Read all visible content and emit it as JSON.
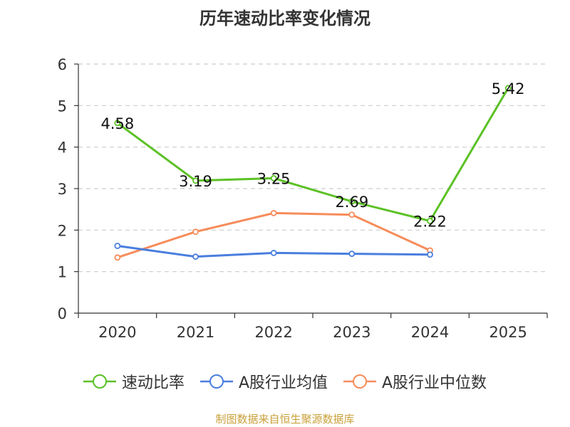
{
  "chart_data": {
    "type": "line",
    "title": "历年速动比率变化情况",
    "categories": [
      "2020",
      "2021",
      "2022",
      "2023",
      "2024",
      "2025"
    ],
    "ylim": [
      0,
      6
    ],
    "yticks": [
      0,
      1,
      2,
      3,
      4,
      5,
      6
    ],
    "grid": true,
    "legend_position": "bottom",
    "series": [
      {
        "name": "速动比率",
        "color": "#5cc126",
        "values": [
          4.58,
          3.19,
          3.25,
          2.69,
          2.22,
          5.42
        ],
        "labels": [
          "4.58",
          "3.19",
          "3.25",
          "2.69",
          "2.22",
          "5.42"
        ]
      },
      {
        "name": "A股行业均值",
        "color": "#4a7ede",
        "values": [
          1.62,
          1.36,
          1.45,
          1.43,
          1.41,
          null
        ]
      },
      {
        "name": "A股行业中位数",
        "color": "#f68c5a",
        "values": [
          1.34,
          1.96,
          2.41,
          2.37,
          1.51,
          null
        ]
      }
    ]
  },
  "footer": {
    "source": "制图数据来自恒生聚源数据库"
  }
}
